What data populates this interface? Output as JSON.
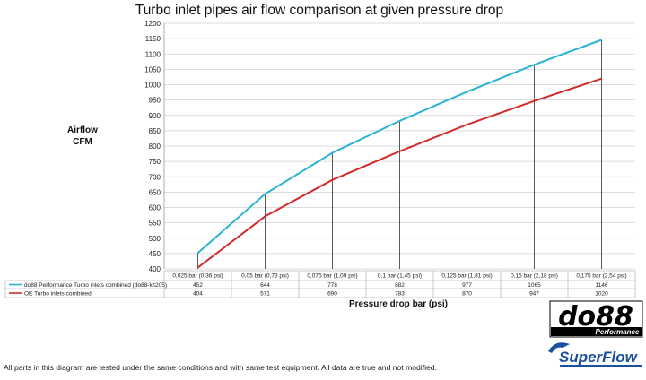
{
  "chart_data": {
    "type": "line",
    "title": "Turbo inlet pipes air flow comparison at given pressure drop",
    "ylabel": [
      "Airflow",
      "CFM"
    ],
    "xlabel": "Pressure drop bar (psi)",
    "ylim": [
      400,
      1200
    ],
    "ytick_step": 50,
    "grid": true,
    "legend": "data table below chart",
    "categories": [
      "0,025 bar (0,36 psi)",
      "0,05 bar (0,73 psi)",
      "0,075 bar (1,09 psi)",
      "0,1 bar (1,45 psi)",
      "0,125 bar (1,81 psi)",
      "0,15 bar (2,18 psi)",
      "0,175 bar (2,54 psi)"
    ],
    "series": [
      {
        "name": "do88 Performance Turbo inlets combined (do88-kit205)",
        "color": "#2bb3d6",
        "values": [
          452,
          644,
          778,
          882,
          977,
          1065,
          1146
        ]
      },
      {
        "name": "OE Turbo inlets combined",
        "color": "#d42a2a",
        "values": [
          404,
          571,
          690,
          783,
          870,
          947,
          1020
        ]
      }
    ]
  },
  "logos": {
    "do88": "do88",
    "do88_sub": "Performance",
    "superflow": "SuperFlow"
  },
  "footer": "All parts in this diagram are tested under the same conditions and with same test equipment. All data are true and not modified."
}
